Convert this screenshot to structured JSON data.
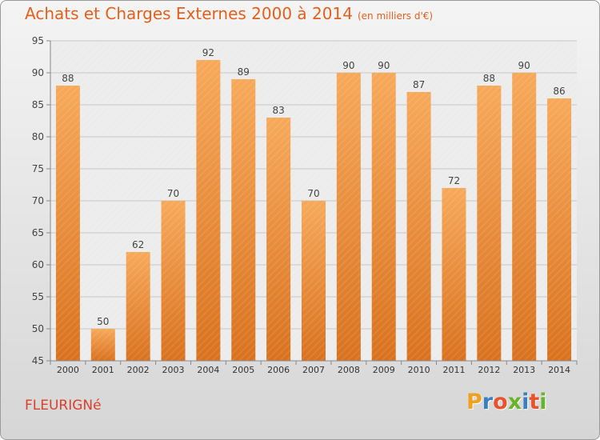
{
  "title": "Achats et Charges Externes 2000 à 2014",
  "subtitle": "(en milliers d'€)",
  "commune": "FLEURIGNé",
  "logo": {
    "letters": [
      "P",
      "r",
      "o",
      "x",
      "i",
      "t",
      "i"
    ],
    "colors": [
      "#f0a020",
      "#3a7fc1",
      "#e8532b",
      "#6ab42d",
      "#3a7fc1",
      "#e8532b",
      "#6ab42d"
    ]
  },
  "colors": {
    "title": "#e2601e",
    "bar_top": "#f7a95a",
    "bar_bottom": "#d9721f",
    "commune": "#d9412a"
  },
  "chart_data": {
    "type": "bar",
    "categories": [
      "2000",
      "2001",
      "2002",
      "2003",
      "2004",
      "2005",
      "2006",
      "2007",
      "2008",
      "2009",
      "2010",
      "2011",
      "2012",
      "2013",
      "2014"
    ],
    "values": [
      88,
      50,
      62,
      70,
      92,
      89,
      83,
      70,
      90,
      90,
      87,
      72,
      88,
      90,
      86
    ],
    "data_labels": [
      "88",
      "50",
      "62",
      "70",
      "92",
      "89",
      "83",
      "70",
      "90",
      "90",
      "87",
      "72",
      "88",
      "90",
      "86"
    ],
    "yticks": [
      "45",
      "50",
      "55",
      "60",
      "65",
      "70",
      "75",
      "80",
      "85",
      "90",
      "95"
    ],
    "ylim": [
      45,
      95
    ],
    "grid": true,
    "legend": "none"
  }
}
